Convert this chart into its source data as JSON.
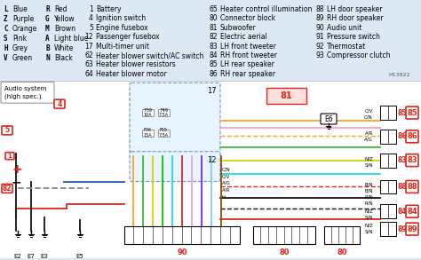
{
  "bg_color": "#dce9f5",
  "title": "H13822",
  "legend_items": [
    [
      "L",
      "Blue",
      "R",
      "Red"
    ],
    [
      "Z",
      "Purple",
      "G",
      "Yellow"
    ],
    [
      "C",
      "Orange",
      "M",
      "Brown"
    ],
    [
      "S",
      "Pink",
      "A",
      "Light blue"
    ],
    [
      "H",
      "Grey",
      "B",
      "White"
    ],
    [
      "V",
      "Green",
      "N",
      "Black"
    ]
  ],
  "component_list_col1": [
    [
      "1",
      "Battery"
    ],
    [
      "4",
      "Ignition switch"
    ],
    [
      "5",
      "Engine fusebox"
    ],
    [
      "12",
      "Passenger fusebox"
    ],
    [
      "17",
      "Multi-timer unit"
    ],
    [
      "62",
      "Heater blower switch/AC switch"
    ],
    [
      "63",
      "Heater blower resistors"
    ],
    [
      "64",
      "Heater blower motor"
    ]
  ],
  "component_list_col2": [
    [
      "65",
      "Heater control illumination"
    ],
    [
      "80",
      "Connector block"
    ],
    [
      "81",
      "Subwoofer"
    ],
    [
      "82",
      "Electric aerial"
    ],
    [
      "83",
      "LH front tweeter"
    ],
    [
      "84",
      "RH front tweeter"
    ],
    [
      "85",
      "LH rear speaker"
    ],
    [
      "86",
      "RH rear speaker"
    ]
  ],
  "component_list_col3": [
    [
      "88",
      "LH door speaker"
    ],
    [
      "89",
      "RH door speaker"
    ],
    [
      "90",
      "Audio unit"
    ],
    [
      "91",
      "Pressure switch"
    ],
    [
      "92",
      "Thermostat"
    ],
    [
      "93",
      "Compressor clutch"
    ]
  ],
  "audio_system_label": "Audio system\n(high spec.)",
  "component_labels": [
    "4",
    "5",
    "12",
    "17",
    "81",
    "82",
    "83",
    "84",
    "85",
    "86",
    "88",
    "89",
    "90",
    "1",
    "E2",
    "E7",
    "E3",
    "E5",
    "E6"
  ],
  "wire_colors": {
    "red": "#e0251a",
    "blue": "#1a5cb0",
    "orange": "#f5a623",
    "green": "#3dba3d",
    "yellow": "#f5e623",
    "cyan": "#23d4f5",
    "pink": "#f5a0c8",
    "brown": "#8B4513",
    "black": "#111111",
    "purple": "#7b23f5",
    "gray": "#888888",
    "lightblue": "#90c8e8",
    "darkblue": "#0a2a8c"
  }
}
